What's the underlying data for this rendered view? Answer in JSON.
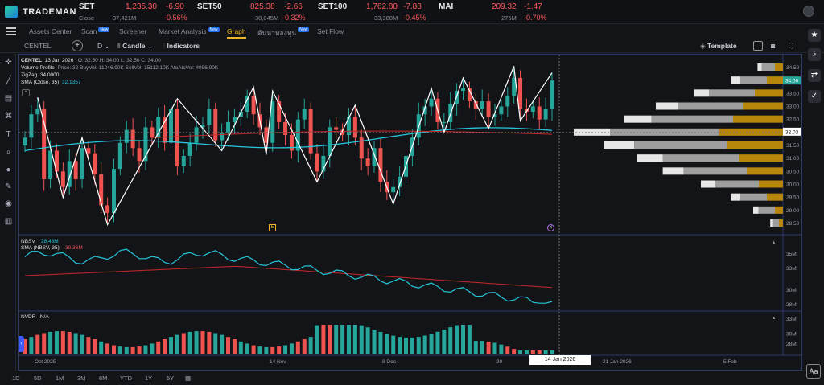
{
  "brand": {
    "name": "TRADEMAN"
  },
  "indices": [
    {
      "name": "SET",
      "value": "1,235.30",
      "change": "-6.90",
      "sub": "Close",
      "volume": "37,421M",
      "percent": "-0.56%"
    },
    {
      "name": "SET50",
      "value": "825.38",
      "change": "-2.66",
      "sub": "",
      "volume": "30,045M",
      "percent": "-0.32%"
    },
    {
      "name": "SET100",
      "value": "1,762.80",
      "change": "-7.88",
      "sub": "",
      "volume": "33,388M",
      "percent": "-0.45%"
    },
    {
      "name": "MAI",
      "value": "209.32",
      "change": "-1.47",
      "sub": "",
      "volume": "275M",
      "percent": "-0.70%"
    }
  ],
  "nav": {
    "tabs": [
      {
        "label": "Assets Center",
        "badge": ""
      },
      {
        "label": "Scan",
        "badge": "New"
      },
      {
        "label": "Screener",
        "badge": ""
      },
      {
        "label": "Market Analysis",
        "badge": "New"
      },
      {
        "label": "Graph",
        "badge": ""
      },
      {
        "label": "ค้นหาทองทุน",
        "badge": "New"
      },
      {
        "label": "Set Flow",
        "badge": ""
      }
    ]
  },
  "toolbar": {
    "symbol": "CENTEL",
    "interval": "D",
    "chart_type": "Candle",
    "indicators": "Indicators",
    "template": "Template"
  },
  "legend": {
    "symbol": "CENTEL",
    "date": "13 Jan 2026",
    "ohlc": "O: 32.50  H: 34.00  L: 32.50  C: 34.00",
    "vp_label": "Volume Profile",
    "vp_values": "Price: 32  BuyVol: 11246.90K  SellVol: 15112.10K  AtoAtcVol: 4096.90K",
    "zz_label": "ZigZag",
    "zz_value": "34.0000",
    "sma_label": "SMA (Close, 35)",
    "sma_value": "32.1357",
    "nbsv_label": "NBSV",
    "nbsv_value": "28.43M",
    "nbsv_sma_label": "SMA (NBSV, 35)",
    "nbsv_sma_value": "30.36M",
    "nvdr_label": "NVDR",
    "nvdr_value": "N/A"
  },
  "price_axis": [
    "34.50",
    "34.00",
    "33.50",
    "33.00",
    "32.50",
    "32.00",
    "31.50",
    "31.00",
    "30.50",
    "30.00",
    "29.50",
    "29.00",
    "28.50"
  ],
  "price_badges": {
    "last": "34.00",
    "sma": "32.03"
  },
  "nbsv_axis": [
    "35M",
    "33M",
    "30M",
    "28M"
  ],
  "nvdr_axis": [
    "33M",
    "30M",
    "28M"
  ],
  "time_axis": [
    "Oct 2025",
    "14 Nov",
    "8 Dec",
    "30",
    "21 Jan 2026",
    "5 Feb"
  ],
  "crosshair_date": "14 Jan 2026",
  "markers": {
    "earnings": "E",
    "dividend": "x"
  },
  "periods": [
    "1D",
    "5D",
    "1M",
    "3M",
    "6M",
    "YTD",
    "1Y",
    "5Y"
  ],
  "font_button": "Aa",
  "colors": {
    "up": "#26a69a",
    "down": "#ef5350",
    "sma": "#26c6da",
    "sma_long": "#c62828",
    "zigzag": "#ffffff",
    "vp_buy": "#b8860b",
    "vp_sell": "#9e9e9e",
    "accent": "#f0b429"
  },
  "chart_data": {
    "type": "candlestick",
    "closes": [
      31.8,
      32.7,
      32.9,
      30.2,
      31.3,
      30.5,
      29.9,
      30.9,
      30.2,
      31.4,
      31.2,
      30.4,
      29.2,
      28.9,
      30.6,
      31.6,
      32.1,
      31.4,
      30.9,
      32.2,
      31.8,
      32.6,
      31.6,
      32.9,
      30.7,
      31.1,
      31.6,
      32.2,
      32.3,
      32.9,
      31.7,
      32.0,
      32.4,
      32.6,
      32.8,
      33.4,
      32.7,
      32.2,
      31.6,
      33.2,
      32.4,
      31.9,
      31.3,
      32.5,
      32.9,
      31.2,
      30.5,
      31.1,
      32.2,
      32.1,
      31.9,
      32.6,
      31.8,
      31.0,
      30.7,
      31.4,
      30.1,
      29.7,
      29.9,
      30.3,
      31.1,
      31.8,
      32.7,
      33.0,
      33.3,
      32.4,
      32.4,
      33.1,
      33.6,
      33.7,
      33.2,
      32.9,
      33.2,
      32.6,
      32.7,
      33.0,
      33.4,
      34.1,
      32.9,
      32.8,
      33.0,
      32.5,
      32.9,
      34.0
    ],
    "sma_close_35": {
      "start": 31.3,
      "end": 32.03
    },
    "nbsv_sma": {
      "start": 32.0,
      "peak": 33.3,
      "end": 30.36
    },
    "nbsv_last": 28.43,
    "volume_profile": {
      "prices": [
        34.5,
        34.0,
        33.5,
        33.0,
        32.5,
        32.0,
        31.5,
        31.0,
        30.5,
        30.0,
        29.5,
        29.0,
        28.5
      ],
      "buy": [
        0.1,
        0.2,
        0.35,
        0.5,
        0.62,
        0.8,
        0.7,
        0.55,
        0.45,
        0.3,
        0.2,
        0.1,
        0.05
      ],
      "sell": [
        0.12,
        0.25,
        0.42,
        0.6,
        0.75,
        1.0,
        0.85,
        0.7,
        0.58,
        0.4,
        0.25,
        0.15,
        0.06
      ]
    }
  }
}
